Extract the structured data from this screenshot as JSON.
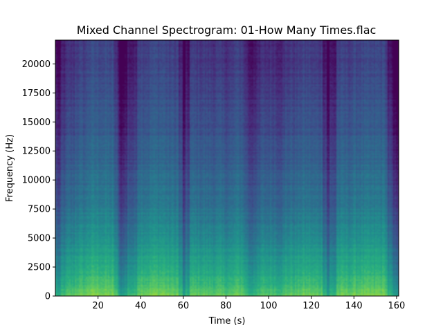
{
  "chart_data": {
    "type": "heatmap",
    "title": "Mixed Channel Spectrogram: 01-How Many Times.flac",
    "xlabel": "Time (s)",
    "ylabel": "Frequency (Hz)",
    "xlim": [
      0,
      161
    ],
    "ylim": [
      0,
      22050
    ],
    "xticks": [
      20,
      40,
      60,
      80,
      100,
      120,
      140,
      160
    ],
    "yticks": [
      0,
      2500,
      5000,
      7500,
      10000,
      12500,
      15000,
      17500,
      20000
    ],
    "grid": false,
    "colormap": "viridis",
    "vmin": 0,
    "vmax": 1,
    "x_segments": [
      {
        "t0": 0.0,
        "t1": 1.0,
        "level": 0.3
      },
      {
        "t0": 1.0,
        "t1": 2.5,
        "level": 0.18
      },
      {
        "t0": 2.5,
        "t1": 5.0,
        "level": 0.45
      },
      {
        "t0": 5.0,
        "t1": 9.0,
        "level": 0.55
      },
      {
        "t0": 9.0,
        "t1": 15.0,
        "level": 0.65
      },
      {
        "t0": 15.0,
        "t1": 22.0,
        "level": 0.75
      },
      {
        "t0": 22.0,
        "t1": 27.0,
        "level": 0.72
      },
      {
        "t0": 27.0,
        "t1": 29.0,
        "level": 0.55
      },
      {
        "t0": 29.0,
        "t1": 30.0,
        "level": 0.3
      },
      {
        "t0": 30.0,
        "t1": 32.0,
        "level": 0.12
      },
      {
        "t0": 32.0,
        "t1": 34.0,
        "level": 0.2
      },
      {
        "t0": 34.0,
        "t1": 38.0,
        "level": 0.4
      },
      {
        "t0": 38.0,
        "t1": 45.0,
        "level": 0.7
      },
      {
        "t0": 45.0,
        "t1": 52.0,
        "level": 0.74
      },
      {
        "t0": 52.0,
        "t1": 58.0,
        "level": 0.68
      },
      {
        "t0": 58.0,
        "t1": 60.0,
        "level": 0.45
      },
      {
        "t0": 60.0,
        "t1": 61.0,
        "level": 0.1
      },
      {
        "t0": 61.0,
        "t1": 63.0,
        "level": 0.32
      },
      {
        "t0": 63.0,
        "t1": 70.0,
        "level": 0.62
      },
      {
        "t0": 70.0,
        "t1": 78.0,
        "level": 0.6
      },
      {
        "t0": 78.0,
        "t1": 84.0,
        "level": 0.58
      },
      {
        "t0": 84.0,
        "t1": 88.0,
        "level": 0.66
      },
      {
        "t0": 88.0,
        "t1": 90.0,
        "level": 0.5
      },
      {
        "t0": 90.0,
        "t1": 93.0,
        "level": 0.34
      },
      {
        "t0": 93.0,
        "t1": 96.0,
        "level": 0.42
      },
      {
        "t0": 96.0,
        "t1": 103.0,
        "level": 0.55
      },
      {
        "t0": 103.0,
        "t1": 108.0,
        "level": 0.5
      },
      {
        "t0": 108.0,
        "t1": 114.0,
        "level": 0.6
      },
      {
        "t0": 114.0,
        "t1": 120.0,
        "level": 0.66
      },
      {
        "t0": 120.0,
        "t1": 125.0,
        "level": 0.62
      },
      {
        "t0": 125.0,
        "t1": 127.5,
        "level": 0.42
      },
      {
        "t0": 127.5,
        "t1": 128.5,
        "level": 0.12
      },
      {
        "t0": 128.5,
        "t1": 132.0,
        "level": 0.35
      },
      {
        "t0": 132.0,
        "t1": 140.0,
        "level": 0.66
      },
      {
        "t0": 140.0,
        "t1": 150.0,
        "level": 0.7
      },
      {
        "t0": 150.0,
        "t1": 155.0,
        "level": 0.72
      },
      {
        "t0": 155.0,
        "t1": 156.0,
        "level": 0.55
      },
      {
        "t0": 156.0,
        "t1": 157.5,
        "level": 0.35
      },
      {
        "t0": 157.5,
        "t1": 158.5,
        "level": 0.2
      },
      {
        "t0": 158.5,
        "t1": 161.0,
        "level": 0.08
      }
    ],
    "frequency_profile": [
      {
        "f": 0,
        "level": 1.0
      },
      {
        "f": 500,
        "level": 0.96
      },
      {
        "f": 1500,
        "level": 0.86
      },
      {
        "f": 2500,
        "level": 0.8
      },
      {
        "f": 4000,
        "level": 0.72
      },
      {
        "f": 6000,
        "level": 0.62
      },
      {
        "f": 8000,
        "level": 0.55
      },
      {
        "f": 10000,
        "level": 0.5
      },
      {
        "f": 12500,
        "level": 0.44
      },
      {
        "f": 15000,
        "level": 0.4
      },
      {
        "f": 17500,
        "level": 0.36
      },
      {
        "f": 20000,
        "level": 0.33
      },
      {
        "f": 22050,
        "level": 0.3
      }
    ]
  }
}
